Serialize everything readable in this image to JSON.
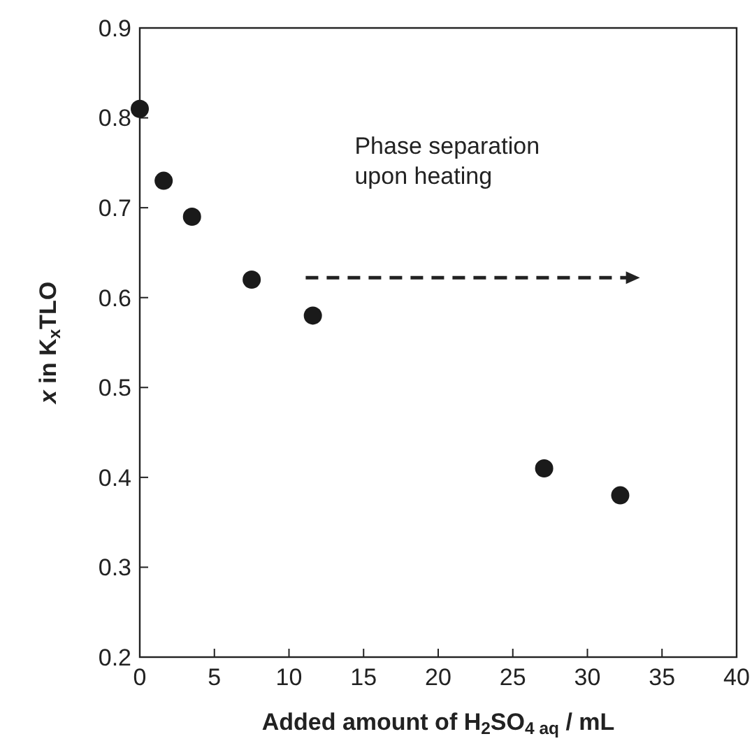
{
  "chart_data": {
    "type": "scatter",
    "xlabel": "Added amount of H$_{2}$SO$_{4 aq}$ / mL",
    "ylabel": "x in K$_{x}$TLO",
    "x": [
      0,
      1.6,
      3.5,
      7.5,
      11.6,
      27.1,
      32.2
    ],
    "series": [
      {
        "color": "#1a1a1a",
        "values": [
          0.81,
          0.73,
          0.69,
          0.62,
          0.58,
          0.41,
          0.38
        ]
      }
    ],
    "xlim": [
      0,
      40
    ],
    "xticks": [
      0,
      5,
      10,
      15,
      20,
      25,
      30,
      35,
      40
    ],
    "ylim": [
      0.2,
      0.9
    ],
    "yticks": [
      0.2,
      0.3,
      0.4,
      0.5,
      0.6,
      0.7,
      0.8,
      0.9
    ],
    "marker": "circle",
    "annotations": [
      "Phase separation\nupon heating"
    ]
  }
}
